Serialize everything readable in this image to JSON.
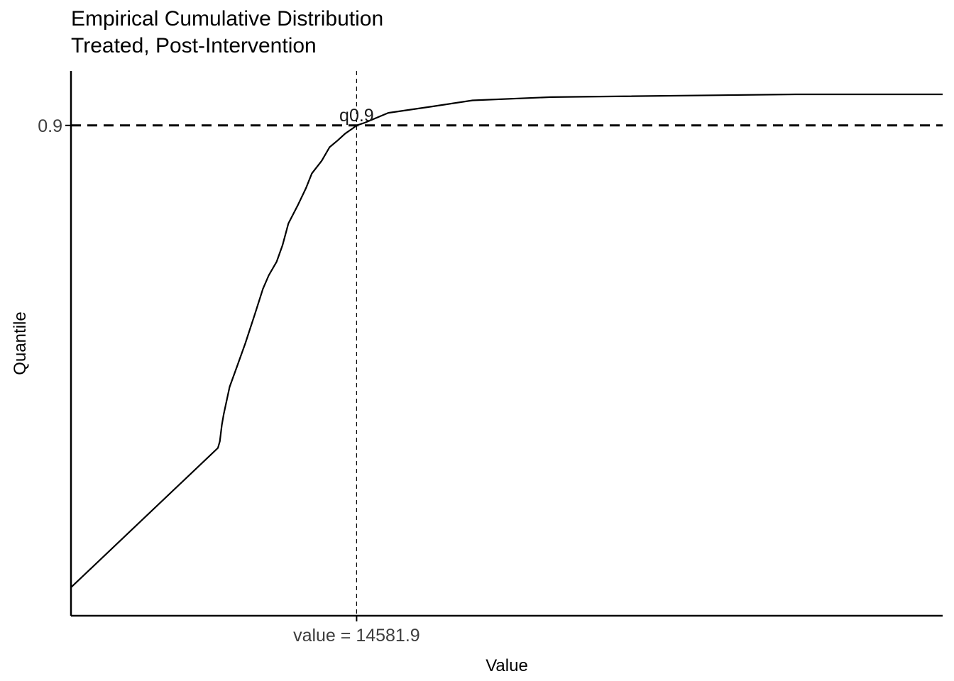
{
  "chart_data": {
    "type": "line",
    "title": "Empirical Cumulative Distribution",
    "subtitle": "Treated, Post-Intervention",
    "xlabel": "Value",
    "ylabel": "Quantile",
    "grid": false,
    "legend": "none",
    "y_tick_labels": [
      "0.9"
    ],
    "x_tick_labels": [
      "value = 14581.9"
    ],
    "annotations": [
      {
        "text": "q0.9",
        "x": 14581.9,
        "y": 0.9
      }
    ],
    "reference_lines": {
      "horizontal": {
        "y": 0.9,
        "style": "dashed"
      },
      "vertical": {
        "x": 14581.9,
        "style": "dashed"
      }
    },
    "xlim": [
      0,
      44500
    ],
    "ylim": [
      0,
      1.0
    ],
    "series": [
      {
        "x": [
          0,
          7500,
          7600,
          7700,
          7800,
          8100,
          8500,
          8900,
          9400,
          9800,
          10100,
          10500,
          10800,
          11100,
          11600,
          12000,
          12300,
          12800,
          13200,
          13600,
          14000,
          14400,
          14581.9,
          15000,
          16200,
          18500,
          20500,
          24500,
          37000,
          44500
        ],
        "y": [
          0.052,
          0.308,
          0.32,
          0.35,
          0.37,
          0.42,
          0.46,
          0.5,
          0.555,
          0.6,
          0.625,
          0.65,
          0.68,
          0.72,
          0.755,
          0.785,
          0.812,
          0.835,
          0.86,
          0.872,
          0.885,
          0.895,
          0.9,
          0.905,
          0.923,
          0.935,
          0.946,
          0.952,
          0.957,
          0.957
        ]
      }
    ]
  }
}
